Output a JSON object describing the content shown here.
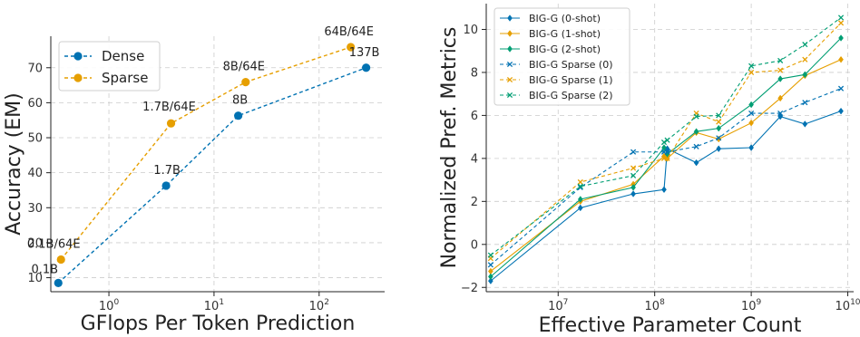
{
  "chart_data": [
    {
      "type": "line",
      "x_scale": "log",
      "xlabel": "GFlops Per Token Prediction",
      "ylabel": "Accuracy (EM)",
      "xlim": [
        0.28,
        420
      ],
      "ylim": [
        6,
        79
      ],
      "x_ticks": [
        {
          "value": 1,
          "base": "10",
          "exp": "0"
        },
        {
          "value": 10,
          "base": "10",
          "exp": "1"
        },
        {
          "value": 100,
          "base": "10",
          "exp": "2"
        }
      ],
      "y_ticks": [
        10,
        20,
        30,
        40,
        50,
        60,
        70
      ],
      "grid": true,
      "legend_position": "top-left",
      "series": [
        {
          "name": "Dense",
          "color": "#0072B2",
          "points": [
            {
              "x": 0.33,
              "y": 8.5,
              "label": "0.1B"
            },
            {
              "x": 3.5,
              "y": 36.3,
              "label": "1.7B"
            },
            {
              "x": 17,
              "y": 56.3,
              "label": "8B"
            },
            {
              "x": 280,
              "y": 70,
              "label": "137B"
            }
          ]
        },
        {
          "name": "Sparse",
          "color": "#E69F00",
          "points": [
            {
              "x": 0.35,
              "y": 15.2,
              "label": "0.1B/64E"
            },
            {
              "x": 3.9,
              "y": 54.1,
              "label": "1.7B/64E"
            },
            {
              "x": 20,
              "y": 65.9,
              "label": "8B/64E"
            },
            {
              "x": 200,
              "y": 75.9,
              "label": "64B/64E"
            }
          ]
        }
      ]
    },
    {
      "type": "line",
      "x_scale": "log",
      "xlabel": "Effective Parameter Count",
      "ylabel": "Normalized Pref. Metrics",
      "xlim": [
        1800000,
        11500000000
      ],
      "ylim": [
        -2.2,
        11.2
      ],
      "x_ticks": [
        {
          "value": 10000000,
          "base": "10",
          "exp": "7"
        },
        {
          "value": 100000000,
          "base": "10",
          "exp": "8"
        },
        {
          "value": 1000000000,
          "base": "10",
          "exp": "9"
        },
        {
          "value": 10000000000,
          "base": "10",
          "exp": "10"
        }
      ],
      "y_ticks": [
        -2,
        0,
        2,
        4,
        6,
        8,
        10
      ],
      "grid": true,
      "legend_position": "top-left",
      "x": [
        2000000,
        17000000,
        60000000,
        125000000,
        135000000,
        270000000,
        460000000,
        1000000000,
        2000000000,
        3600000000,
        8500000000
      ],
      "series": [
        {
          "name": "BIG-G (0-shot)",
          "color": "#0072B2",
          "dashed": false,
          "marker": "diamond",
          "values": [
            -1.7,
            1.7,
            2.35,
            2.55,
            4.45,
            3.8,
            4.45,
            4.5,
            5.95,
            5.6,
            6.2
          ]
        },
        {
          "name": "BIG-G (1-shot)",
          "color": "#E69F00",
          "dashed": false,
          "marker": "diamond",
          "values": [
            -1.25,
            2.0,
            2.8,
            4.1,
            4.0,
            5.2,
            4.9,
            5.65,
            6.8,
            7.85,
            8.6
          ]
        },
        {
          "name": "BIG-G (2-shot)",
          "color": "#009E73",
          "dashed": false,
          "marker": "diamond",
          "values": [
            -1.5,
            2.1,
            2.65,
            4.5,
            4.2,
            5.25,
            5.4,
            6.5,
            7.7,
            7.9,
            9.6
          ]
        },
        {
          "name": "BIG-G Sparse (0)",
          "color": "#0072B2",
          "dashed": true,
          "marker": "x",
          "values": [
            -0.95,
            2.65,
            4.3,
            4.3,
            4.3,
            4.55,
            4.95,
            6.1,
            6.1,
            6.6,
            7.25
          ]
        },
        {
          "name": "BIG-G Sparse (1)",
          "color": "#E69F00",
          "dashed": true,
          "marker": "x",
          "values": [
            -0.65,
            2.9,
            3.55,
            4.0,
            4.0,
            6.1,
            5.7,
            8.0,
            8.1,
            8.6,
            10.3
          ]
        },
        {
          "name": "BIG-G Sparse (2)",
          "color": "#009E73",
          "dashed": true,
          "marker": "x",
          "values": [
            -0.5,
            2.7,
            3.2,
            4.75,
            4.85,
            5.95,
            6.0,
            8.3,
            8.55,
            9.3,
            10.55
          ]
        }
      ]
    }
  ]
}
